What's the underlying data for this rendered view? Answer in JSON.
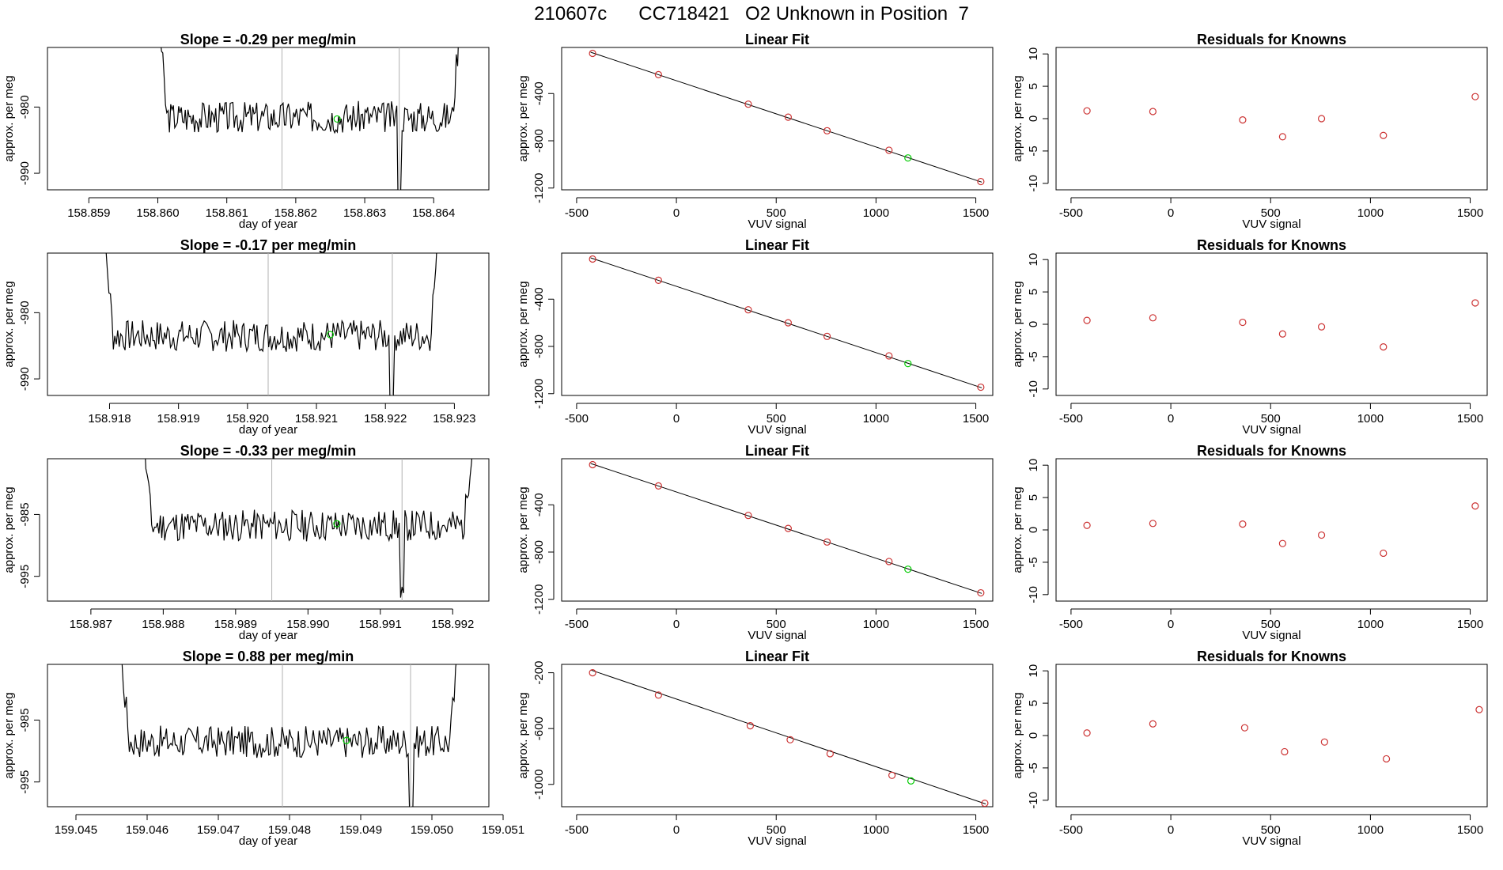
{
  "title": "210607c      CC718421   O2 Unknown in Position  7",
  "chart_data": [
    {
      "type": "line",
      "title": "Slope =  -0.29  per meg/min",
      "xlabel": "day of year",
      "ylabel": "approx. per meg",
      "xlim": [
        158.8584,
        158.8648
      ],
      "ylim": [
        -992.5,
        -971
      ],
      "xticks": [
        "158.859",
        "158.860",
        "158.861",
        "158.862",
        "158.863",
        "158.864"
      ],
      "yticks": [
        "-990",
        "-980"
      ],
      "vlines": [
        158.8618,
        158.8635
      ],
      "marker": {
        "x": 158.8626,
        "y": -981.8,
        "color": "#00cc00"
      },
      "trace": {
        "start_x": 158.8599,
        "end_x": 158.8645,
        "base": -981.5,
        "amp": 2.4,
        "seed": 3
      }
    },
    {
      "type": "scatter",
      "title": "Linear Fit",
      "xlabel": "VUV signal",
      "ylabel": "approx. per meg",
      "xlim": [
        -575,
        1585
      ],
      "ylim": [
        -1215,
        -10
      ],
      "xticks": [
        "-500",
        "0",
        "500",
        "1000",
        "1500"
      ],
      "yticks": [
        "-1200",
        "-800",
        "-400"
      ],
      "points": [
        {
          "x": -420,
          "y": -60
        },
        {
          "x": -90,
          "y": -240
        },
        {
          "x": 360,
          "y": -490
        },
        {
          "x": 560,
          "y": -600
        },
        {
          "x": 755,
          "y": -715
        },
        {
          "x": 1065,
          "y": -880
        },
        {
          "x": 1525,
          "y": -1145
        }
      ],
      "unknown": {
        "x": 1160,
        "y": -945
      },
      "fit": {
        "x1": -430,
        "y1": -50,
        "x2": 1530,
        "y2": -1150
      }
    },
    {
      "type": "scatter",
      "title": "Residuals for Knowns",
      "xlabel": "VUV signal",
      "ylabel": "approx. per meg",
      "xlim": [
        -575,
        1585
      ],
      "ylim": [
        -11,
        11
      ],
      "xticks": [
        "-500",
        "0",
        "500",
        "1000",
        "1500"
      ],
      "yticks": [
        "-10",
        "-5",
        "0",
        "5",
        "10"
      ],
      "points": [
        {
          "x": -420,
          "y": 1.2
        },
        {
          "x": -90,
          "y": 1.1
        },
        {
          "x": 360,
          "y": -0.2
        },
        {
          "x": 560,
          "y": -2.8
        },
        {
          "x": 755,
          "y": 0
        },
        {
          "x": 1065,
          "y": -2.6
        },
        {
          "x": 1525,
          "y": 3.4
        }
      ]
    },
    {
      "type": "line",
      "title": "Slope =  -0.17  per meg/min",
      "xlabel": "day of year",
      "ylabel": "approx. per meg",
      "xlim": [
        158.9171,
        158.9235
      ],
      "ylim": [
        -992.5,
        -971
      ],
      "xticks": [
        "158.918",
        "158.919",
        "158.920",
        "158.921",
        "158.922",
        "158.923"
      ],
      "yticks": [
        "-990",
        "-980"
      ],
      "vlines": [
        158.9203,
        158.9221
      ],
      "marker": {
        "x": 158.9212,
        "y": -983.3,
        "color": "#00cc00"
      },
      "trace": {
        "start_x": 158.9178,
        "end_x": 158.9229,
        "base": -983.5,
        "amp": 2.4,
        "seed": 7
      }
    },
    {
      "type": "scatter",
      "title": "Linear Fit",
      "xlabel": "VUV signal",
      "ylabel": "approx. per meg",
      "xlim": [
        -575,
        1585
      ],
      "ylim": [
        -1215,
        -10
      ],
      "xticks": [
        "-500",
        "0",
        "500",
        "1000",
        "1500"
      ],
      "yticks": [
        "-1200",
        "-800",
        "-400"
      ],
      "points": [
        {
          "x": -420,
          "y": -60
        },
        {
          "x": -90,
          "y": -240
        },
        {
          "x": 360,
          "y": -490
        },
        {
          "x": 560,
          "y": -600
        },
        {
          "x": 755,
          "y": -715
        },
        {
          "x": 1065,
          "y": -880
        },
        {
          "x": 1525,
          "y": -1145
        }
      ],
      "unknown": {
        "x": 1160,
        "y": -945
      },
      "fit": {
        "x1": -430,
        "y1": -50,
        "x2": 1530,
        "y2": -1150
      }
    },
    {
      "type": "scatter",
      "title": "Residuals for Knowns",
      "xlabel": "VUV signal",
      "ylabel": "approx. per meg",
      "xlim": [
        -575,
        1585
      ],
      "ylim": [
        -11,
        11
      ],
      "xticks": [
        "-500",
        "0",
        "500",
        "1000",
        "1500"
      ],
      "yticks": [
        "-10",
        "-5",
        "0",
        "5",
        "10"
      ],
      "points": [
        {
          "x": -420,
          "y": 0.6
        },
        {
          "x": -90,
          "y": 1.0
        },
        {
          "x": 360,
          "y": 0.3
        },
        {
          "x": 560,
          "y": -1.5
        },
        {
          "x": 755,
          "y": -0.4
        },
        {
          "x": 1065,
          "y": -3.5
        },
        {
          "x": 1525,
          "y": 3.3
        }
      ]
    },
    {
      "type": "line",
      "title": "Slope =  -0.33  per meg/min",
      "xlabel": "day of year",
      "ylabel": "approx. per meg",
      "xlim": [
        158.9864,
        158.9925
      ],
      "ylim": [
        -999,
        -976
      ],
      "xticks": [
        "158.987",
        "158.988",
        "158.989",
        "158.990",
        "158.991",
        "158.992"
      ],
      "yticks": [
        "-995",
        "-985"
      ],
      "vlines": [
        158.9895,
        158.9913
      ],
      "marker": {
        "x": 158.9904,
        "y": -986.5,
        "color": "#00cc00"
      },
      "trace": {
        "start_x": 158.9876,
        "end_x": 158.9924,
        "base": -986.8,
        "amp": 2.6,
        "seed": 11
      }
    },
    {
      "type": "scatter",
      "title": "Linear Fit",
      "xlabel": "VUV signal",
      "ylabel": "approx. per meg",
      "xlim": [
        -575,
        1585
      ],
      "ylim": [
        -1215,
        -10
      ],
      "xticks": [
        "-500",
        "0",
        "500",
        "1000",
        "1500"
      ],
      "yticks": [
        "-1200",
        "-800",
        "-400"
      ],
      "points": [
        {
          "x": -420,
          "y": -60
        },
        {
          "x": -90,
          "y": -240
        },
        {
          "x": 360,
          "y": -490
        },
        {
          "x": 560,
          "y": -600
        },
        {
          "x": 755,
          "y": -715
        },
        {
          "x": 1065,
          "y": -880
        },
        {
          "x": 1525,
          "y": -1145
        }
      ],
      "unknown": {
        "x": 1160,
        "y": -945
      },
      "fit": {
        "x1": -430,
        "y1": -50,
        "x2": 1530,
        "y2": -1150
      }
    },
    {
      "type": "scatter",
      "title": "Residuals for Knowns",
      "xlabel": "VUV signal",
      "ylabel": "approx. per meg",
      "xlim": [
        -575,
        1585
      ],
      "ylim": [
        -11,
        11
      ],
      "xticks": [
        "-500",
        "0",
        "500",
        "1000",
        "1500"
      ],
      "yticks": [
        "-10",
        "-5",
        "0",
        "5",
        "10"
      ],
      "points": [
        {
          "x": -420,
          "y": 0.7
        },
        {
          "x": -90,
          "y": 1.0
        },
        {
          "x": 360,
          "y": 0.9
        },
        {
          "x": 560,
          "y": -2.1
        },
        {
          "x": 755,
          "y": -0.8
        },
        {
          "x": 1065,
          "y": -3.6
        },
        {
          "x": 1525,
          "y": 3.7
        }
      ]
    },
    {
      "type": "line",
      "title": "Slope =  0.88  per meg/min",
      "xlabel": "day of year",
      "ylabel": "approx. per meg",
      "xlim": [
        159.0446,
        159.0508
      ],
      "ylim": [
        -999,
        -976
      ],
      "xticks": [
        "159.045",
        "159.046",
        "159.047",
        "159.048",
        "159.049",
        "159.050",
        "159.051"
      ],
      "yticks": [
        "-995",
        "-985"
      ],
      "vlines": [
        159.0479,
        159.0497
      ],
      "marker": {
        "x": 159.0488,
        "y": -988.3,
        "color": "#00cc00"
      },
      "trace": {
        "start_x": 159.0455,
        "end_x": 159.0505,
        "base": -988.5,
        "amp": 2.6,
        "seed": 17
      }
    },
    {
      "type": "scatter",
      "title": "Linear Fit",
      "xlabel": "VUV signal",
      "ylabel": "approx. per meg",
      "xlim": [
        -575,
        1585
      ],
      "ylim": [
        -1160,
        -140
      ],
      "xticks": [
        "-500",
        "0",
        "500",
        "1000",
        "1500"
      ],
      "yticks": [
        "-1000",
        "-600",
        "-200"
      ],
      "points": [
        {
          "x": -420,
          "y": -200
        },
        {
          "x": -90,
          "y": -360
        },
        {
          "x": 370,
          "y": -580
        },
        {
          "x": 570,
          "y": -680
        },
        {
          "x": 770,
          "y": -780
        },
        {
          "x": 1080,
          "y": -935
        },
        {
          "x": 1545,
          "y": -1135
        }
      ],
      "unknown": {
        "x": 1175,
        "y": -975
      },
      "fit": {
        "x1": -430,
        "y1": -180,
        "x2": 1550,
        "y2": -1140
      }
    },
    {
      "type": "scatter",
      "title": "Residuals for Knowns",
      "xlabel": "VUV signal",
      "ylabel": "approx. per meg",
      "xlim": [
        -575,
        1585
      ],
      "ylim": [
        -11,
        11
      ],
      "xticks": [
        "-500",
        "0",
        "500",
        "1000",
        "1500"
      ],
      "yticks": [
        "-10",
        "-5",
        "0",
        "5",
        "10"
      ],
      "points": [
        {
          "x": -420,
          "y": 0.4
        },
        {
          "x": -90,
          "y": 1.8
        },
        {
          "x": 370,
          "y": 1.2
        },
        {
          "x": 570,
          "y": -2.5
        },
        {
          "x": 770,
          "y": -1.0
        },
        {
          "x": 1080,
          "y": -3.6
        },
        {
          "x": 1545,
          "y": 4.0
        }
      ]
    }
  ]
}
